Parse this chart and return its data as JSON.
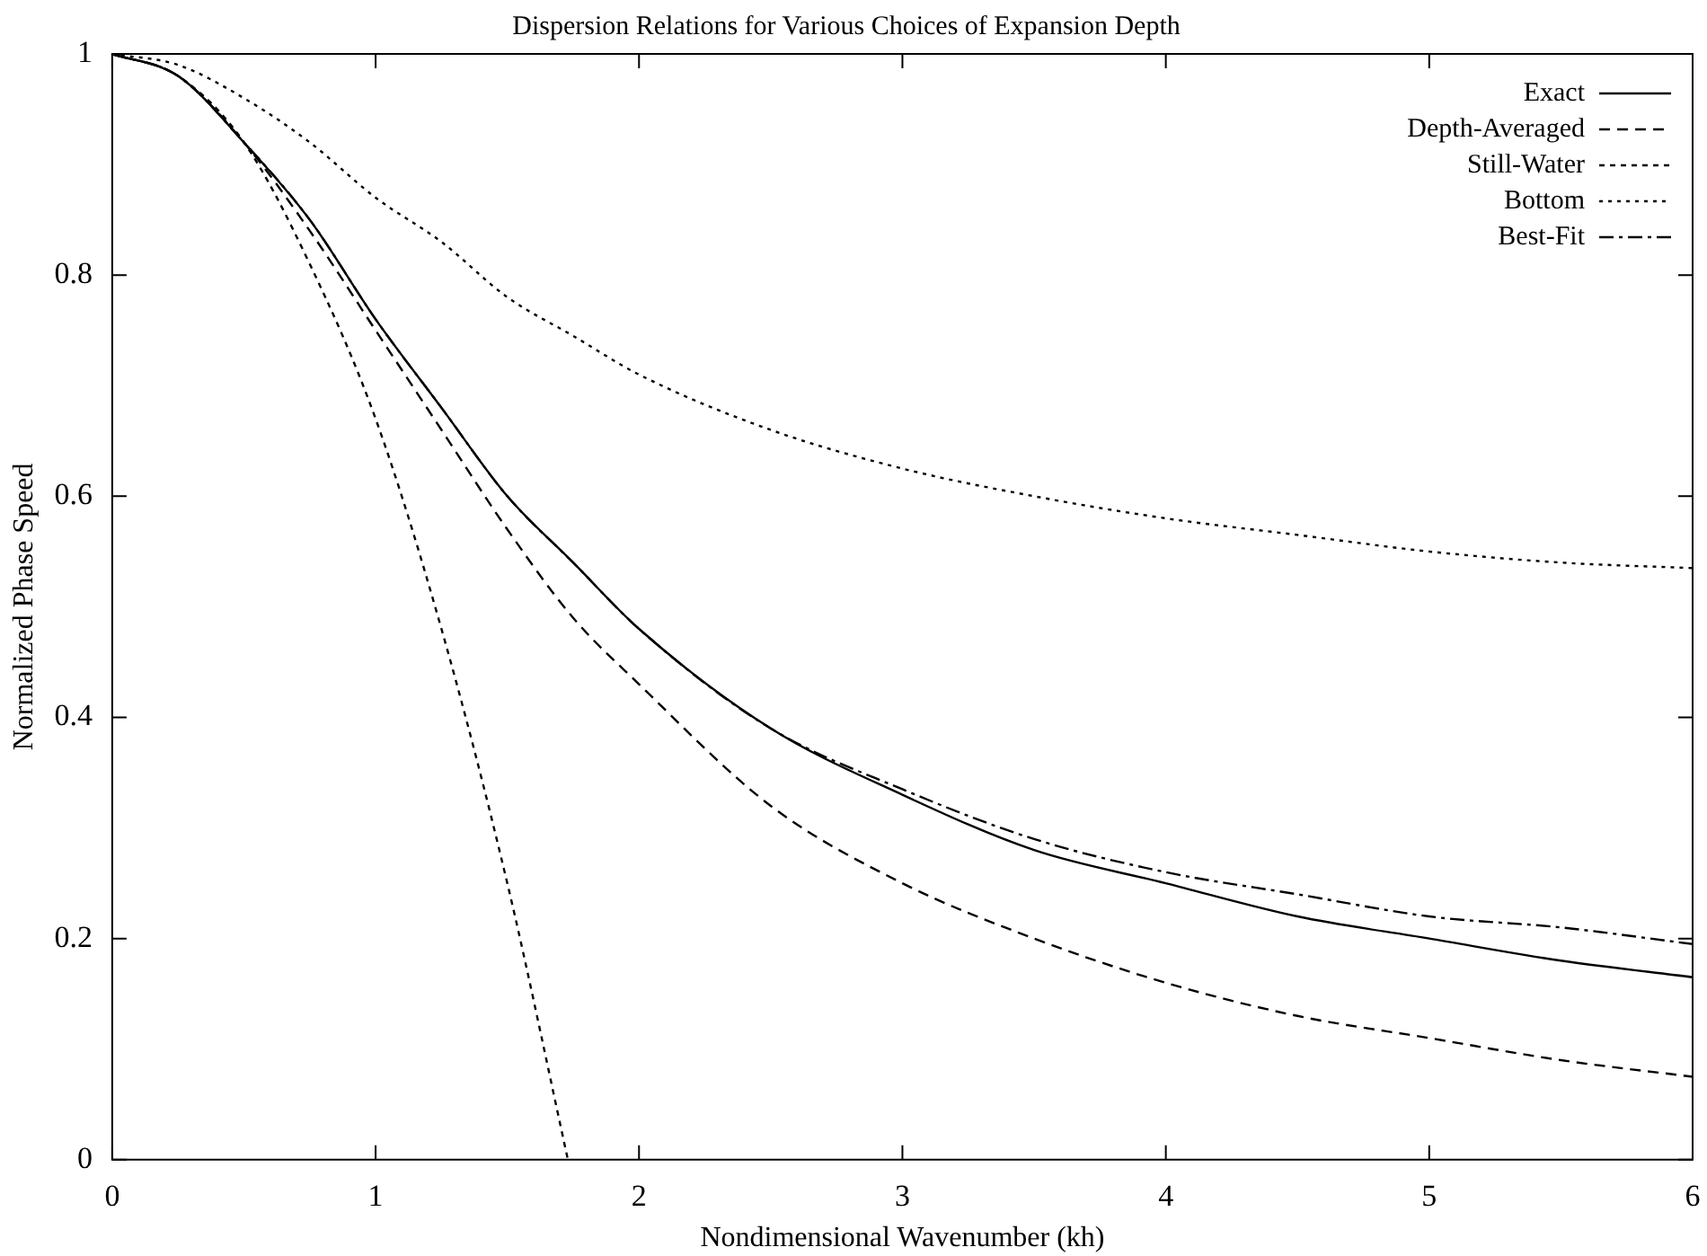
{
  "chart_data": {
    "type": "line",
    "title": "Dispersion Relations for Various Choices of Expansion Depth",
    "xlabel": "Nondimensional Wavenumber (kh)",
    "ylabel": "Normalized Phase Speed",
    "x": [
      0,
      0.25,
      0.5,
      0.75,
      1,
      1.25,
      1.5,
      1.75,
      2,
      2.5,
      3,
      3.5,
      4,
      4.5,
      5,
      5.5,
      6
    ],
    "xlim": [
      0,
      6
    ],
    "xticks": [
      0,
      1,
      2,
      3,
      4,
      5,
      6
    ],
    "ylim": [
      0,
      1
    ],
    "yticks": [
      0,
      0.2,
      0.4,
      0.6,
      0.8,
      1
    ],
    "grid": false,
    "legend": "top right",
    "marker": "none",
    "series": [
      {
        "name": "Exact",
        "color": "#000000",
        "line_style": "solid",
        "values": [
          1,
          0.98,
          0.92,
          0.85,
          0.76,
          0.68,
          0.6,
          0.54,
          0.48,
          0.39,
          0.33,
          0.28,
          0.25,
          0.22,
          0.2,
          0.18,
          0.165
        ]
      },
      {
        "name": "Depth-Averaged",
        "color": "#000000",
        "line_style": "dashed",
        "values": [
          1,
          0.98,
          0.92,
          0.84,
          0.75,
          0.66,
          0.57,
          0.49,
          0.43,
          0.32,
          0.25,
          0.2,
          0.16,
          0.13,
          0.11,
          0.09,
          0.075
        ]
      },
      {
        "name": "Still-Water",
        "color": "#000000",
        "line_style": "dashed",
        "x": [
          0,
          0.25,
          0.5,
          0.75,
          1,
          1.25,
          1.5,
          1.73
        ],
        "values": [
          1,
          0.98,
          0.92,
          0.81,
          0.67,
          0.48,
          0.25,
          0
        ]
      },
      {
        "name": "Bottom",
        "color": "#000000",
        "line_style": "dotted",
        "values": [
          1,
          0.99,
          0.96,
          0.92,
          0.87,
          0.83,
          0.78,
          0.745,
          0.71,
          0.66,
          0.625,
          0.6,
          0.58,
          0.565,
          0.55,
          0.54,
          0.535
        ]
      },
      {
        "name": "Best-Fit",
        "color": "#000000",
        "line_style": "dashdot",
        "values": [
          1,
          0.98,
          0.92,
          0.85,
          0.76,
          0.68,
          0.6,
          0.54,
          0.48,
          0.39,
          0.335,
          0.29,
          0.26,
          0.24,
          0.22,
          0.21,
          0.195
        ]
      }
    ]
  }
}
